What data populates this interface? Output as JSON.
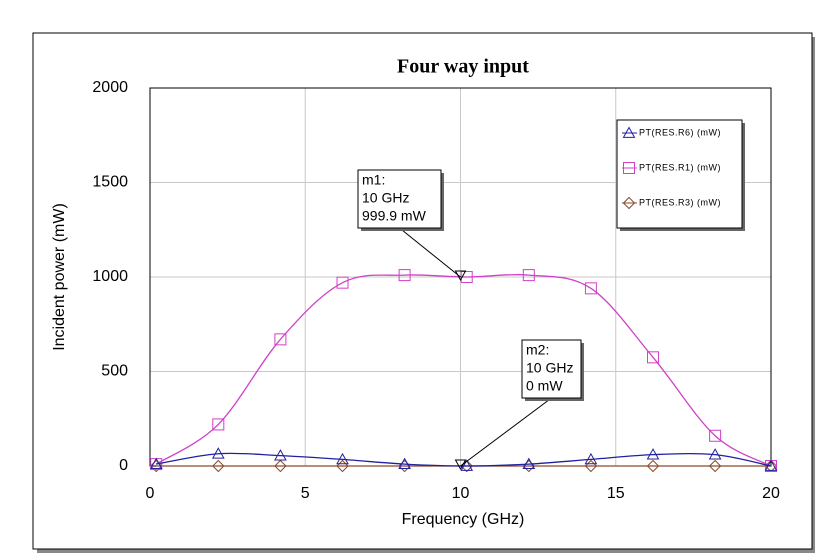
{
  "chart_data": {
    "type": "line",
    "title": "Four way input",
    "xlabel": "Frequency (GHz)",
    "ylabel": "Incident power (mW)",
    "x": [
      0.2,
      2.2,
      4.2,
      6.2,
      8.2,
      10.2,
      12.2,
      14.2,
      16.2,
      18.2,
      20
    ],
    "xlim": [
      0,
      20
    ],
    "xticks": [
      0,
      5,
      10,
      15,
      20
    ],
    "ylim": [
      0,
      2000
    ],
    "yticks": [
      0,
      500,
      1000,
      1500,
      2000
    ],
    "grid": true,
    "legend": "upper right",
    "series": [
      {
        "name": "PT(RES.R6) (mW)",
        "color": "#2020a0",
        "marker": "triangle",
        "values": [
          10,
          65,
          55,
          35,
          10,
          0,
          10,
          35,
          60,
          60,
          0
        ]
      },
      {
        "name": "PT(RES.R1) (mW)",
        "color": "#d040c8",
        "marker": "square",
        "values": [
          10,
          220,
          670,
          970,
          1010,
          1000,
          1010,
          940,
          575,
          160,
          0
        ]
      },
      {
        "name": "PT(RES.R3) (mW)",
        "color": "#8b4a2a",
        "marker": "diamond",
        "values": [
          0,
          0,
          0,
          0,
          0,
          0,
          0,
          0,
          0,
          0,
          0
        ]
      }
    ],
    "annotations": [
      {
        "lines": [
          "m1:",
          "10 GHz",
          "999.9 mW"
        ],
        "x": 10,
        "y": 999.9
      },
      {
        "lines": [
          "m2:",
          "10 GHz",
          "0 mW"
        ],
        "x": 10,
        "y": 0
      }
    ]
  }
}
